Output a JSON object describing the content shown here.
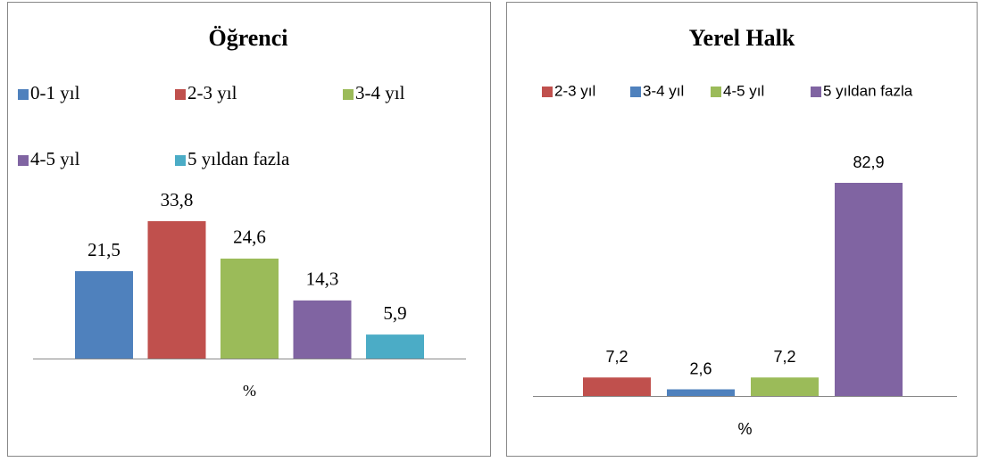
{
  "chart_data": [
    {
      "type": "bar",
      "title": "Öğrenci",
      "categories": [
        "%"
      ],
      "series": [
        {
          "name": "0-1 yıl",
          "color": "#4f81bd",
          "values": [
            21.5
          ],
          "value_labels": [
            "21,5"
          ]
        },
        {
          "name": "2-3 yıl",
          "color": "#c0504d",
          "values": [
            33.8
          ],
          "value_labels": [
            "33,8"
          ]
        },
        {
          "name": "3-4 yıl",
          "color": "#9bbb59",
          "values": [
            24.6
          ],
          "value_labels": [
            "24,6"
          ]
        },
        {
          "name": "4-5 yıl",
          "color": "#8064a2",
          "values": [
            14.3
          ],
          "value_labels": [
            "14,3"
          ]
        },
        {
          "name": "5 yıldan fazla",
          "color": "#4bacc6",
          "values": [
            5.9
          ],
          "value_labels": [
            "5,9"
          ]
        }
      ]
    },
    {
      "type": "bar",
      "title": "Yerel Halk",
      "categories": [
        "%"
      ],
      "series": [
        {
          "name": "2-3 yıl",
          "color": "#c0504d",
          "values": [
            7.2
          ],
          "value_labels": [
            "7,2"
          ]
        },
        {
          "name": "3-4 yıl",
          "color": "#4f81bd",
          "values": [
            2.6
          ],
          "value_labels": [
            "2,6"
          ]
        },
        {
          "name": "4-5 yıl",
          "color": "#9bbb59",
          "values": [
            7.2
          ],
          "value_labels": [
            "7,2"
          ]
        },
        {
          "name": "5 yıldan fazla",
          "color": "#8064a2",
          "values": [
            82.9
          ],
          "value_labels": [
            "82,9"
          ]
        }
      ]
    }
  ]
}
